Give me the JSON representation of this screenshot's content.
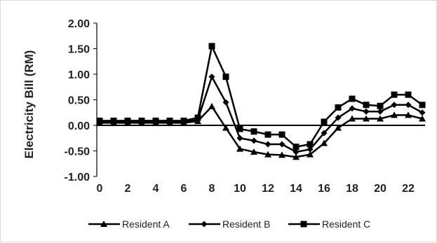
{
  "chart_data": {
    "type": "line",
    "title": "",
    "xlabel": "",
    "ylabel": "Electricity Bill (RM)",
    "x": [
      0,
      1,
      2,
      3,
      4,
      5,
      6,
      7,
      8,
      9,
      10,
      11,
      12,
      13,
      14,
      15,
      16,
      17,
      18,
      19,
      20,
      21,
      22,
      23
    ],
    "x_tick_labels": [
      "0",
      "2",
      "4",
      "6",
      "8",
      "10",
      "12",
      "14",
      "16",
      "18",
      "20",
      "22"
    ],
    "x_tick_values": [
      0,
      2,
      4,
      6,
      8,
      10,
      12,
      14,
      16,
      18,
      20,
      22
    ],
    "xlim": [
      -0.2,
      23.2
    ],
    "ylim": [
      -1.0,
      2.0
    ],
    "y_tick_labels": [
      "2.00",
      "1.50",
      "1.00",
      "0.50",
      "0.00",
      "-0.50",
      "-1.00"
    ],
    "y_tick_values": [
      2.0,
      1.5,
      1.0,
      0.5,
      0.0,
      -0.5,
      -1.0
    ],
    "grid": false,
    "legend_position": "bottom",
    "series": [
      {
        "name": "Resident A",
        "marker": "triangle",
        "values": [
          0.05,
          0.05,
          0.05,
          0.05,
          0.05,
          0.05,
          0.05,
          0.08,
          0.37,
          -0.05,
          -0.46,
          -0.52,
          -0.57,
          -0.58,
          -0.62,
          -0.57,
          -0.35,
          -0.05,
          0.13,
          0.13,
          0.13,
          0.2,
          0.2,
          0.13
        ]
      },
      {
        "name": "Resident B",
        "marker": "diamond",
        "values": [
          0.07,
          0.07,
          0.07,
          0.07,
          0.07,
          0.07,
          0.07,
          0.11,
          0.95,
          0.45,
          -0.25,
          -0.3,
          -0.37,
          -0.37,
          -0.52,
          -0.47,
          -0.15,
          0.15,
          0.33,
          0.27,
          0.27,
          0.4,
          0.4,
          0.25
        ]
      },
      {
        "name": "Resident C",
        "marker": "square",
        "values": [
          0.09,
          0.09,
          0.09,
          0.09,
          0.09,
          0.09,
          0.09,
          0.15,
          1.55,
          0.95,
          -0.07,
          -0.12,
          -0.18,
          -0.18,
          -0.42,
          -0.37,
          0.07,
          0.35,
          0.52,
          0.4,
          0.38,
          0.6,
          0.6,
          0.4
        ]
      }
    ],
    "color": "#000000"
  }
}
